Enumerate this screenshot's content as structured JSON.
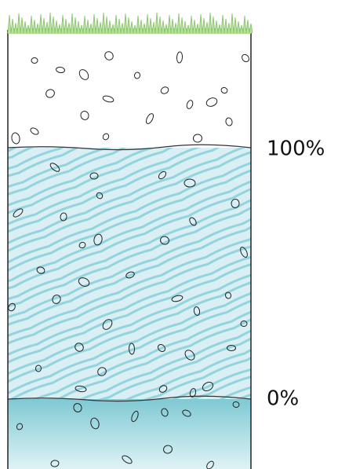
{
  "levels": [
    {
      "label": "100%"
    },
    {
      "label": "0%"
    }
  ]
}
